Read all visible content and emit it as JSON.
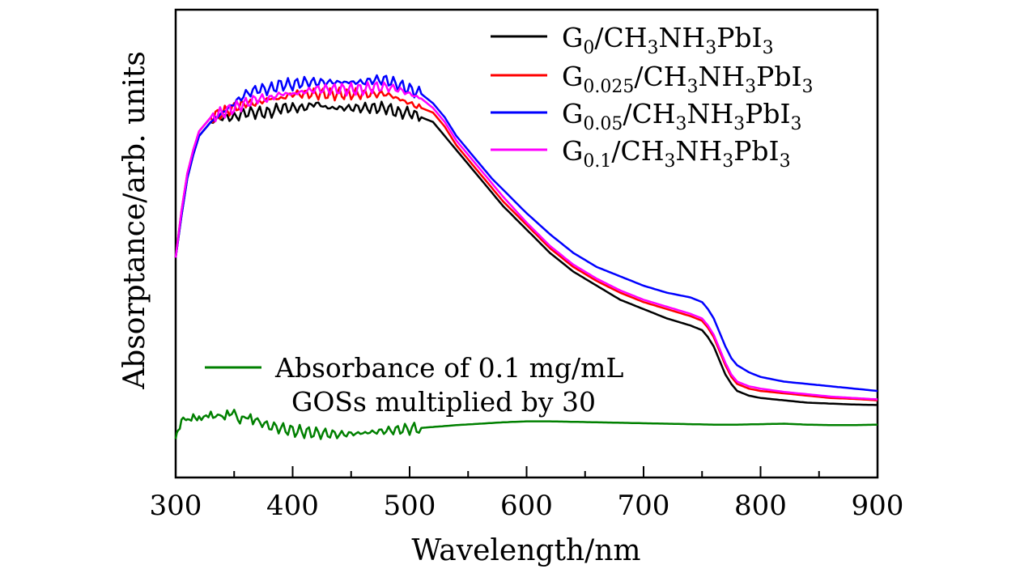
{
  "chart_data": {
    "type": "line",
    "title": "",
    "xlabel": "Wavelength/nm",
    "ylabel": "Absorptance/arb. units",
    "xlim": [
      300,
      900
    ],
    "ylim": [
      0,
      1.0
    ],
    "x_ticks": [
      300,
      400,
      500,
      600,
      700,
      800,
      900
    ],
    "y_tick_labels": false,
    "grid": false,
    "legend_position": "top-right",
    "series": [
      {
        "name": "G0/CH3NH3PbI3",
        "legend": {
          "prefix": "G",
          "sub": "0",
          "rest": "/CH",
          "sub2": "3",
          "mid": "NH",
          "sub3": "3",
          "mid2": "PbI",
          "sub4": "3"
        },
        "color": "#000000",
        "x": [
          300,
          305,
          310,
          315,
          320,
          330,
          340,
          350,
          360,
          370,
          380,
          390,
          400,
          410,
          420,
          430,
          440,
          450,
          460,
          470,
          480,
          490,
          500,
          510,
          520,
          530,
          540,
          550,
          560,
          570,
          580,
          600,
          620,
          640,
          660,
          680,
          700,
          720,
          740,
          750,
          755,
          760,
          765,
          770,
          775,
          780,
          790,
          800,
          820,
          840,
          860,
          880,
          900
        ],
        "y": [
          0.47,
          0.56,
          0.64,
          0.69,
          0.73,
          0.76,
          0.77,
          0.77,
          0.78,
          0.78,
          0.78,
          0.79,
          0.79,
          0.79,
          0.8,
          0.79,
          0.79,
          0.79,
          0.79,
          0.79,
          0.79,
          0.78,
          0.78,
          0.77,
          0.76,
          0.73,
          0.7,
          0.67,
          0.64,
          0.61,
          0.58,
          0.53,
          0.48,
          0.44,
          0.41,
          0.38,
          0.36,
          0.34,
          0.325,
          0.315,
          0.3,
          0.28,
          0.25,
          0.22,
          0.2,
          0.185,
          0.175,
          0.17,
          0.165,
          0.16,
          0.158,
          0.156,
          0.155
        ]
      },
      {
        "name": "G0.025/CH3NH3PbI3",
        "legend": {
          "prefix": "G",
          "sub": "0.025",
          "rest": "/CH",
          "sub2": "3",
          "mid": "NH",
          "sub3": "3",
          "mid2": "PbI",
          "sub4": "3"
        },
        "color": "#ff0000",
        "x": [
          300,
          305,
          310,
          315,
          320,
          330,
          340,
          350,
          360,
          370,
          380,
          390,
          400,
          410,
          420,
          430,
          440,
          450,
          460,
          470,
          480,
          490,
          500,
          510,
          520,
          530,
          540,
          550,
          560,
          570,
          580,
          600,
          620,
          640,
          660,
          680,
          700,
          720,
          740,
          750,
          755,
          760,
          765,
          770,
          775,
          780,
          790,
          800,
          820,
          840,
          860,
          880,
          900
        ],
        "y": [
          0.47,
          0.57,
          0.65,
          0.7,
          0.74,
          0.77,
          0.78,
          0.79,
          0.8,
          0.8,
          0.81,
          0.81,
          0.82,
          0.82,
          0.82,
          0.82,
          0.82,
          0.82,
          0.82,
          0.82,
          0.82,
          0.81,
          0.8,
          0.79,
          0.78,
          0.75,
          0.71,
          0.68,
          0.65,
          0.62,
          0.59,
          0.54,
          0.49,
          0.45,
          0.42,
          0.395,
          0.375,
          0.36,
          0.345,
          0.335,
          0.32,
          0.3,
          0.27,
          0.24,
          0.215,
          0.2,
          0.19,
          0.185,
          0.18,
          0.175,
          0.17,
          0.168,
          0.165
        ]
      },
      {
        "name": "G0.05/CH3NH3PbI3",
        "legend": {
          "prefix": "G",
          "sub": "0.05",
          "rest": "/CH",
          "sub2": "3",
          "mid": "NH",
          "sub3": "3",
          "mid2": "PbI",
          "sub4": "3"
        },
        "color": "#0000ff",
        "x": [
          300,
          305,
          310,
          315,
          320,
          330,
          340,
          350,
          360,
          370,
          380,
          390,
          400,
          410,
          420,
          430,
          440,
          450,
          460,
          470,
          480,
          490,
          500,
          510,
          520,
          530,
          540,
          550,
          560,
          570,
          580,
          600,
          620,
          640,
          660,
          680,
          700,
          720,
          740,
          750,
          755,
          760,
          765,
          770,
          775,
          780,
          790,
          800,
          820,
          840,
          860,
          880,
          900
        ],
        "y": [
          0.47,
          0.56,
          0.64,
          0.69,
          0.73,
          0.76,
          0.78,
          0.8,
          0.82,
          0.83,
          0.83,
          0.84,
          0.84,
          0.845,
          0.845,
          0.845,
          0.845,
          0.845,
          0.845,
          0.85,
          0.85,
          0.84,
          0.83,
          0.82,
          0.8,
          0.77,
          0.73,
          0.7,
          0.67,
          0.64,
          0.615,
          0.565,
          0.52,
          0.48,
          0.45,
          0.43,
          0.41,
          0.395,
          0.385,
          0.375,
          0.36,
          0.34,
          0.31,
          0.28,
          0.255,
          0.24,
          0.225,
          0.215,
          0.205,
          0.2,
          0.195,
          0.19,
          0.185
        ]
      },
      {
        "name": "G0.1/CH3NH3PbI3",
        "legend": {
          "prefix": "G",
          "sub": "0.1",
          "rest": "/CH",
          "sub2": "3",
          "mid": "NH",
          "sub3": "3",
          "mid2": "PbI",
          "sub4": "3"
        },
        "color": "#ff00ff",
        "x": [
          300,
          305,
          310,
          315,
          320,
          330,
          340,
          350,
          360,
          370,
          380,
          390,
          400,
          410,
          420,
          430,
          440,
          450,
          460,
          470,
          480,
          490,
          500,
          510,
          520,
          530,
          540,
          550,
          560,
          570,
          580,
          600,
          620,
          640,
          660,
          680,
          700,
          720,
          740,
          750,
          755,
          760,
          765,
          770,
          775,
          780,
          790,
          800,
          820,
          840,
          860,
          880,
          900
        ],
        "y": [
          0.47,
          0.57,
          0.65,
          0.7,
          0.74,
          0.77,
          0.78,
          0.79,
          0.8,
          0.81,
          0.81,
          0.82,
          0.82,
          0.825,
          0.83,
          0.83,
          0.83,
          0.83,
          0.83,
          0.835,
          0.835,
          0.83,
          0.82,
          0.81,
          0.79,
          0.76,
          0.72,
          0.69,
          0.66,
          0.63,
          0.6,
          0.545,
          0.495,
          0.455,
          0.425,
          0.4,
          0.38,
          0.365,
          0.35,
          0.34,
          0.325,
          0.305,
          0.275,
          0.245,
          0.22,
          0.205,
          0.195,
          0.19,
          0.183,
          0.178,
          0.173,
          0.17,
          0.167
        ]
      },
      {
        "name": "Absorbance of 0.1 mg/mL GOSs multiplied by 30",
        "color": "#008000",
        "x": [
          300,
          302,
          305,
          308,
          310,
          315,
          320,
          330,
          340,
          350,
          355,
          360,
          370,
          380,
          400,
          420,
          440,
          460,
          480,
          500,
          520,
          540,
          560,
          580,
          600,
          620,
          640,
          660,
          680,
          700,
          720,
          740,
          760,
          780,
          800,
          820,
          840,
          860,
          880,
          900
        ],
        "y": [
          0.08,
          0.1,
          0.12,
          0.13,
          0.12,
          0.13,
          0.125,
          0.135,
          0.13,
          0.14,
          0.12,
          0.13,
          0.12,
          0.11,
          0.1,
          0.095,
          0.092,
          0.095,
          0.1,
          0.104,
          0.108,
          0.112,
          0.115,
          0.118,
          0.12,
          0.12,
          0.119,
          0.118,
          0.117,
          0.116,
          0.115,
          0.114,
          0.113,
          0.113,
          0.114,
          0.115,
          0.113,
          0.112,
          0.112,
          0.113
        ]
      }
    ],
    "annotation": {
      "line1": "Absorbance of 0.1 mg/mL",
      "line2": "GOSs multiplied by 30"
    }
  }
}
